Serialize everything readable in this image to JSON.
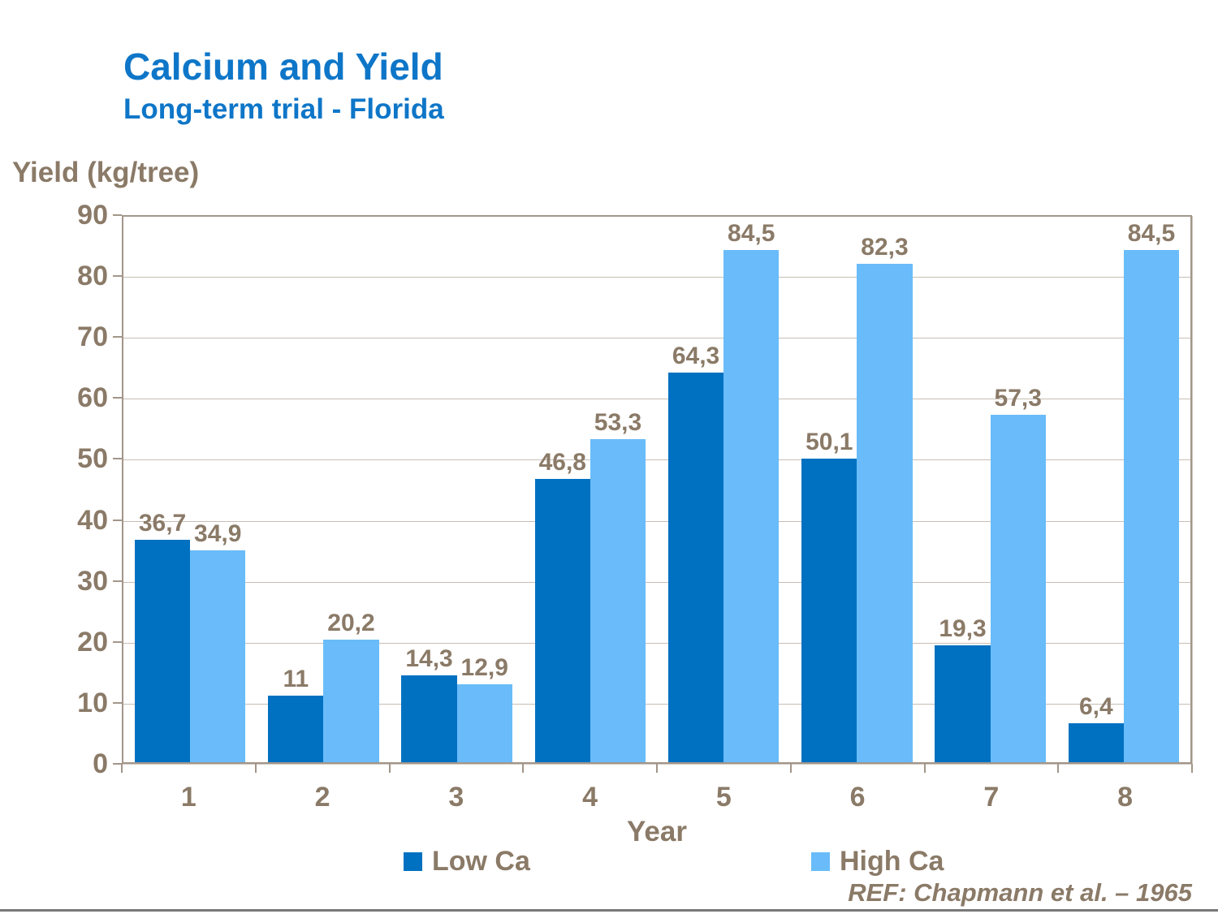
{
  "title": "Calcium and Yield",
  "subtitle": "Long-term trial - Florida",
  "y_axis_label": "Yield (kg/tree)",
  "x_axis_label": "Year",
  "reference": "REF: Chapmann et al. – 1965",
  "colors": {
    "title_blue": "#0E76C8",
    "low_ca": "#0071C1",
    "high_ca": "#69BCF9",
    "text_brown": "#8A7A67",
    "gridline": "#C8BEB4",
    "axis_border": "#A2968A",
    "bottom_rule": "#787878"
  },
  "chart_data": {
    "type": "bar",
    "categories": [
      "1",
      "2",
      "3",
      "4",
      "5",
      "6",
      "7",
      "8"
    ],
    "series": [
      {
        "name": "Low Ca",
        "color": "#0071C1",
        "values": [
          36.7,
          11,
          14.3,
          46.8,
          64.3,
          50.1,
          19.3,
          6.4
        ],
        "labels": [
          "36,7",
          "11",
          "14,3",
          "46,8",
          "64,3",
          "50,1",
          "19,3",
          "6,4"
        ]
      },
      {
        "name": "High Ca",
        "color": "#69BCF9",
        "values": [
          34.9,
          20.2,
          12.9,
          53.3,
          84.5,
          82.3,
          57.3,
          84.5
        ],
        "labels": [
          "34,9",
          "20,2",
          "12,9",
          "53,3",
          "84,5",
          "82,3",
          "57,3",
          "84,5"
        ]
      }
    ],
    "title": "Calcium and Yield",
    "subtitle": "Long-term trial - Florida",
    "xlabel": "Year",
    "ylabel": "Yield (kg/tree)",
    "ylim": [
      0,
      90
    ],
    "yticks": [
      0,
      10,
      20,
      30,
      40,
      50,
      60,
      70,
      80,
      90
    ],
    "grid": true,
    "legend_position": "bottom"
  }
}
